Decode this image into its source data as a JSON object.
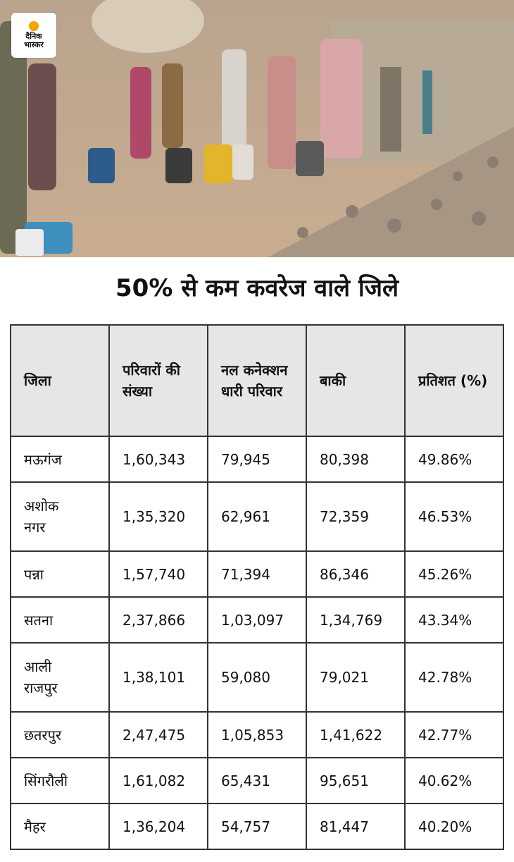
{
  "header": {
    "logo": [
      "दैनिक",
      "भास्कर"
    ],
    "title": "50% से कम कवरेज वाले जिले"
  },
  "table": {
    "columns": [
      "जिला",
      "परिवारों की संख्या",
      "नल कनेक्शन धारी परिवार",
      "बाकी",
      "प्रतिशत (%)"
    ],
    "rows": [
      [
        "मऊगंज",
        "1,60,343",
        "79,945",
        "80,398",
        "49.86%"
      ],
      [
        "अशोक नगर",
        "1,35,320",
        "62,961",
        "72,359",
        "46.53%"
      ],
      [
        "पन्ना",
        "1,57,740",
        "71,394",
        "86,346",
        "45.26%"
      ],
      [
        "सतना",
        "2,37,866",
        "1,03,097",
        "1,34,769",
        "43.34%"
      ],
      [
        "आली राजपुर",
        "1,38,101",
        "59,080",
        "79,021",
        "42.78%"
      ],
      [
        "छतरपुर",
        "2,47,475",
        "1,05,853",
        "1,41,622",
        "42.77%"
      ],
      [
        "सिंगरौली",
        "1,61,082",
        "65,431",
        "95,651",
        "40.62%"
      ],
      [
        "मैहर",
        "1,36,204",
        "54,757",
        "81,447",
        "40.20%"
      ]
    ]
  }
}
